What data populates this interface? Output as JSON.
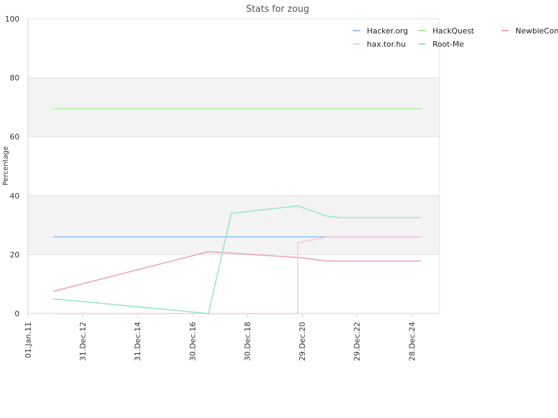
{
  "chart_data": {
    "type": "line",
    "title": "Stats for zoug",
    "xlabel": "",
    "ylabel": "Percentage",
    "ylim": [
      0,
      100
    ],
    "xlim": [
      "2011-01-01",
      "2026-01-01"
    ],
    "y_ticks": [
      0,
      20,
      40,
      60,
      80,
      100
    ],
    "x_ticks": [
      {
        "date": "2011-01-01",
        "label": "01.Jan.11"
      },
      {
        "date": "2012-12-31",
        "label": "31.Dec.12"
      },
      {
        "date": "2014-12-31",
        "label": "31.Dec.14"
      },
      {
        "date": "2016-12-30",
        "label": "30.Dec.16"
      },
      {
        "date": "2018-12-30",
        "label": "30.Dec.18"
      },
      {
        "date": "2020-12-29",
        "label": "29.Dec.20"
      },
      {
        "date": "2022-12-29",
        "label": "29.Dec.22"
      },
      {
        "date": "2024-12-28",
        "label": "28.Dec.24"
      }
    ],
    "grid": "horizontal bands",
    "legend_position": "top-right",
    "series": [
      {
        "name": "Hacker.org",
        "color": "#8cc3f2",
        "points": [
          [
            "2011-12-01",
            26
          ],
          [
            "2025-05-01",
            26
          ]
        ]
      },
      {
        "name": "HackQuest",
        "color": "#a6eb96",
        "points": [
          [
            "2011-12-01",
            69.5
          ],
          [
            "2025-05-01",
            69.5
          ]
        ]
      },
      {
        "name": "NewbieContest",
        "color": "#f0a0c2",
        "points": [
          [
            "2011-12-01",
            7.5
          ],
          [
            "2017-08-01",
            21
          ],
          [
            "2020-11-01",
            19
          ],
          [
            "2021-12-01",
            17.8
          ],
          [
            "2025-05-01",
            17.8
          ]
        ]
      },
      {
        "name": "hax.tor.hu",
        "color": "#f7c6d9",
        "points": [
          [
            "2011-12-01",
            0
          ],
          [
            "2020-11-01",
            0
          ],
          [
            "2020-11-02",
            24
          ],
          [
            "2021-12-01",
            26
          ],
          [
            "2025-05-01",
            26
          ]
        ]
      },
      {
        "name": "Root-Me",
        "color": "#96e6c8",
        "points": [
          [
            "2011-12-01",
            5
          ],
          [
            "2017-08-01",
            0
          ],
          [
            "2018-06-01",
            34
          ],
          [
            "2020-11-01",
            36.5
          ],
          [
            "2021-12-01",
            33
          ],
          [
            "2022-06-01",
            32.5
          ],
          [
            "2025-05-01",
            32.5
          ]
        ]
      }
    ]
  }
}
